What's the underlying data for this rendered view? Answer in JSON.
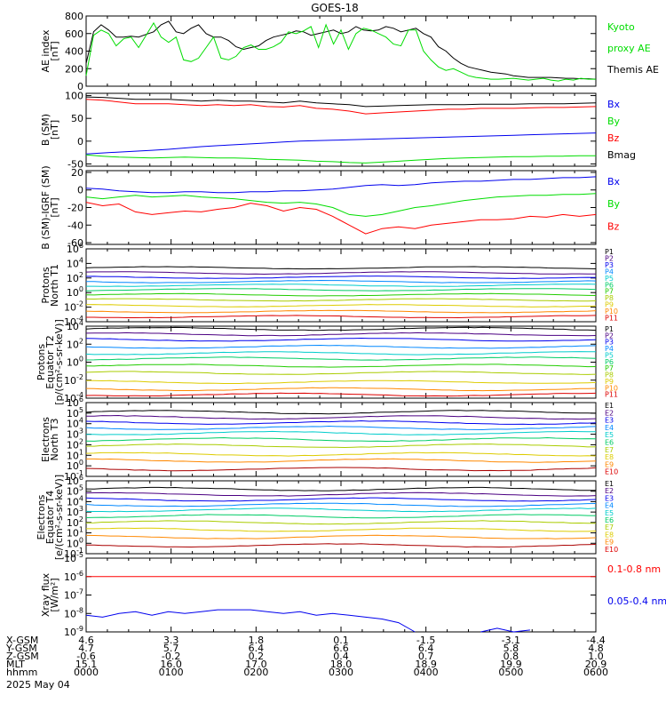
{
  "title": "GOES-18",
  "date_label": "2025 May 04",
  "chart_data": [
    {
      "type": "line",
      "id": "ae",
      "ylabel": [
        "AE index",
        "[nT]"
      ],
      "ylim": [
        0,
        800
      ],
      "yticks": [
        [
          0,
          "0"
        ],
        [
          200,
          "200"
        ],
        [
          400,
          "400"
        ],
        [
          600,
          "600"
        ],
        [
          800,
          "800"
        ]
      ],
      "series": [
        {
          "name": "Themis AE",
          "color": "#000000",
          "values": [
            260,
            620,
            700,
            640,
            560,
            560,
            570,
            560,
            590,
            620,
            700,
            740,
            620,
            600,
            660,
            700,
            600,
            560,
            560,
            520,
            450,
            420,
            440,
            460,
            520,
            560,
            580,
            600,
            630,
            620,
            580,
            600,
            620,
            640,
            600,
            620,
            680,
            640,
            630,
            640,
            680,
            660,
            620,
            640,
            660,
            600,
            560,
            450,
            400,
            320,
            260,
            220,
            200,
            180,
            160,
            150,
            140,
            120,
            110,
            100,
            100,
            100,
            100,
            95,
            90,
            90,
            85,
            85,
            80
          ]
        },
        {
          "name": "Kyoto proxy AE",
          "color": "#00dd00",
          "values": [
            120,
            580,
            640,
            600,
            460,
            540,
            560,
            440,
            580,
            720,
            560,
            500,
            560,
            300,
            280,
            320,
            440,
            560,
            320,
            300,
            340,
            440,
            470,
            420,
            420,
            450,
            500,
            620,
            600,
            630,
            680,
            440,
            700,
            480,
            640,
            420,
            600,
            660,
            640,
            600,
            560,
            480,
            460,
            640,
            640,
            400,
            300,
            220,
            180,
            200,
            160,
            120,
            100,
            90,
            80,
            80,
            85,
            90,
            80,
            70,
            80,
            90,
            70,
            60,
            80,
            70,
            90,
            80,
            80
          ]
        }
      ],
      "legend": [
        {
          "text": "Kyoto",
          "color": "#00dd00"
        },
        {
          "text": "proxy AE",
          "color": "#00dd00"
        },
        {
          "text": "Themis AE",
          "color": "#000000"
        }
      ]
    },
    {
      "type": "line",
      "id": "bsm",
      "ylabel": [
        "B (SM)",
        "[nT]"
      ],
      "ylim": [
        -55,
        105
      ],
      "yticks": [
        [
          -50,
          "-50"
        ],
        [
          0,
          "0"
        ],
        [
          50,
          "50"
        ],
        [
          100,
          "100"
        ]
      ],
      "series": [
        {
          "name": "Bx",
          "color": "#0000ee",
          "values": [
            -28,
            -26,
            -24,
            -22,
            -20,
            -18,
            -15,
            -12,
            -10,
            -8,
            -6,
            -4,
            -2,
            0,
            1,
            2,
            3,
            4,
            5,
            6,
            7,
            8,
            9,
            10,
            11,
            12,
            13,
            14,
            15,
            16,
            17,
            18
          ]
        },
        {
          "name": "By",
          "color": "#00dd00",
          "values": [
            -30,
            -33,
            -35,
            -36,
            -37,
            -36,
            -35,
            -36,
            -37,
            -37,
            -38,
            -40,
            -41,
            -42,
            -44,
            -45,
            -47,
            -48,
            -46,
            -44,
            -42,
            -40,
            -38,
            -37,
            -36,
            -35,
            -34,
            -34,
            -33,
            -33,
            -32,
            -32
          ]
        },
        {
          "name": "Bz",
          "color": "#ff0000",
          "values": [
            92,
            90,
            86,
            82,
            82,
            82,
            80,
            78,
            80,
            78,
            80,
            76,
            75,
            78,
            72,
            70,
            66,
            60,
            62,
            64,
            66,
            68,
            70,
            70,
            72,
            72,
            72,
            73,
            74,
            74,
            75,
            76
          ]
        },
        {
          "name": "Bmag",
          "color": "#000000",
          "values": [
            97,
            96,
            94,
            92,
            92,
            92,
            90,
            88,
            90,
            88,
            88,
            86,
            84,
            88,
            84,
            82,
            80,
            76,
            77,
            78,
            79,
            80,
            80,
            80,
            81,
            81,
            81,
            82,
            82,
            82,
            83,
            84
          ]
        }
      ],
      "legend": [
        {
          "text": "Bx",
          "color": "#0000ee"
        },
        {
          "text": "By",
          "color": "#00dd00"
        },
        {
          "text": "Bz",
          "color": "#ff0000"
        },
        {
          "text": "Bmag",
          "color": "#000000"
        }
      ]
    },
    {
      "type": "line",
      "id": "bigrf",
      "ylabel": [
        "B (SM)-IGRF (SM)",
        "[nT]"
      ],
      "ylim": [
        -62,
        22
      ],
      "yticks": [
        [
          -60,
          "-60"
        ],
        [
          -40,
          "-40"
        ],
        [
          -20,
          "-20"
        ],
        [
          0,
          "0"
        ],
        [
          20,
          "20"
        ]
      ],
      "series": [
        {
          "name": "Bx",
          "color": "#0000ee",
          "values": [
            2,
            1,
            -1,
            -2,
            -3,
            -3,
            -2,
            -2,
            -3,
            -3,
            -2,
            -2,
            -1,
            -1,
            0,
            1,
            3,
            5,
            6,
            5,
            6,
            8,
            9,
            10,
            10,
            11,
            12,
            12,
            13,
            14,
            14,
            15
          ]
        },
        {
          "name": "By",
          "color": "#00dd00",
          "values": [
            -8,
            -10,
            -8,
            -6,
            -8,
            -7,
            -6,
            -8,
            -9,
            -10,
            -12,
            -14,
            -15,
            -14,
            -16,
            -20,
            -28,
            -30,
            -28,
            -24,
            -20,
            -18,
            -15,
            -12,
            -10,
            -8,
            -7,
            -6,
            -6,
            -5,
            -5,
            -4
          ]
        },
        {
          "name": "Bz",
          "color": "#ff0000",
          "values": [
            -14,
            -18,
            -16,
            -25,
            -28,
            -26,
            -24,
            -25,
            -22,
            -20,
            -15,
            -18,
            -24,
            -20,
            -22,
            -30,
            -40,
            -50,
            -44,
            -42,
            -44,
            -40,
            -38,
            -36,
            -34,
            -34,
            -33,
            -30,
            -31,
            -28,
            -30,
            -28
          ]
        }
      ],
      "legend": [
        {
          "text": "Bx",
          "color": "#0000ee"
        },
        {
          "text": "By",
          "color": "#00dd00"
        },
        {
          "text": "Bz",
          "color": "#ff0000"
        }
      ]
    },
    {
      "type": "line",
      "id": "pt1",
      "log": true,
      "ylabel": [
        "Protons",
        "North T1"
      ],
      "ylim": [
        -4,
        6
      ],
      "yticks": [
        [
          -4,
          "10",
          "-4"
        ],
        [
          -2,
          "10",
          "-2"
        ],
        [
          0,
          "10",
          "0"
        ],
        [
          2,
          "10",
          "2"
        ],
        [
          4,
          "10",
          "4"
        ],
        [
          6,
          "10",
          "6"
        ]
      ],
      "channels": [
        "P1",
        "P2",
        "P3",
        "P4",
        "P5",
        "P6",
        "P7",
        "P8",
        "P9",
        "P10",
        "P11"
      ],
      "levels": [
        3.4,
        2.7,
        2.1,
        1.5,
        1.0,
        0.4,
        -0.3,
        -1.0,
        -1.8,
        -2.6,
        -3.3
      ],
      "colors": [
        "#000000",
        "#4b0082",
        "#0000ee",
        "#0088ff",
        "#00cccc",
        "#00cc66",
        "#22cc00",
        "#aacc00",
        "#ddcc00",
        "#ff8800",
        "#dd0000"
      ],
      "legend_colors": [
        "#000000",
        "#4b0082",
        "#0000ee",
        "#0088ff",
        "#00cccc",
        "#00cc66",
        "#22cc00",
        "#aacc00",
        "#ddcc00",
        "#ff8800",
        "#dd0000"
      ]
    },
    {
      "type": "line",
      "id": "pt2",
      "log": true,
      "ylabel": [
        "Protons",
        "Equator T2",
        "[p/(cm²-s-sr-keV)]"
      ],
      "ylim": [
        -4,
        4
      ],
      "yticks": [
        [
          -4,
          "10",
          "-4"
        ],
        [
          -2,
          "10",
          "-2"
        ],
        [
          0,
          "10",
          "0"
        ],
        [
          2,
          "10",
          "2"
        ],
        [
          4,
          "10",
          "4"
        ]
      ],
      "channels": [
        "P1",
        "P2",
        "P3",
        "P4",
        "P5",
        "P6",
        "P7",
        "P8",
        "P9",
        "P10",
        "P11"
      ],
      "levels": [
        3.7,
        3.1,
        2.5,
        1.7,
        1.0,
        0.4,
        -0.4,
        -1.2,
        -2.2,
        -3.0,
        -3.6
      ],
      "colors": [
        "#000000",
        "#4b0082",
        "#0000ee",
        "#0088ff",
        "#00cccc",
        "#00cc66",
        "#22cc00",
        "#aacc00",
        "#ddcc00",
        "#ff8800",
        "#dd0000"
      ],
      "legend_colors": [
        "#000000",
        "#4b0082",
        "#0000ee",
        "#0088ff",
        "#00cccc",
        "#00cc66",
        "#22cc00",
        "#aacc00",
        "#ddcc00",
        "#ff8800",
        "#dd0000"
      ]
    },
    {
      "type": "line",
      "id": "et3",
      "log": true,
      "ylabel": [
        "Electrons",
        "North T3"
      ],
      "ylim": [
        -1,
        6
      ],
      "yticks": [
        [
          -1,
          "10",
          "-1"
        ],
        [
          0,
          "10",
          "0"
        ],
        [
          1,
          "10",
          "1"
        ],
        [
          2,
          "10",
          "2"
        ],
        [
          3,
          "10",
          "3"
        ],
        [
          4,
          "10",
          "4"
        ],
        [
          5,
          "10",
          "5"
        ],
        [
          6,
          "10",
          "6"
        ]
      ],
      "channels": [
        "E1",
        "E2",
        "E3",
        "E4",
        "E5",
        "E6",
        "E7",
        "E8",
        "E9",
        "E10"
      ],
      "levels": [
        5.1,
        4.6,
        4.1,
        3.6,
        3.1,
        2.5,
        1.9,
        1.1,
        0.5,
        -0.3
      ],
      "colors": [
        "#000000",
        "#4b0082",
        "#0000ee",
        "#0088ff",
        "#00cccc",
        "#00cc66",
        "#aacc00",
        "#ddcc00",
        "#ff8800",
        "#aa0000"
      ],
      "legend_colors": [
        "#000000",
        "#4b0082",
        "#0000ee",
        "#0088ff",
        "#00cccc",
        "#00cc66",
        "#aacc00",
        "#ddcc00",
        "#ff8800",
        "#dd0000"
      ]
    },
    {
      "type": "line",
      "id": "et4",
      "log": true,
      "ylabel": [
        "Electrons",
        "Equator T4",
        "[e/(cm²-s-sr-keV)]"
      ],
      "ylim": [
        -1,
        6
      ],
      "yticks": [
        [
          -1,
          "10",
          "-1"
        ],
        [
          0,
          "10",
          "0"
        ],
        [
          1,
          "10",
          "1"
        ],
        [
          2,
          "10",
          "2"
        ],
        [
          3,
          "10",
          "3"
        ],
        [
          4,
          "10",
          "4"
        ],
        [
          5,
          "10",
          "5"
        ],
        [
          6,
          "10",
          "6"
        ]
      ],
      "channels": [
        "E1",
        "E2",
        "E3",
        "E4",
        "E5",
        "E6",
        "E7",
        "E8",
        "E9",
        "E10"
      ],
      "levels": [
        5.2,
        4.7,
        4.2,
        3.7,
        3.2,
        2.6,
        2.0,
        1.3,
        0.6,
        -0.2
      ],
      "colors": [
        "#000000",
        "#4b0082",
        "#0000ee",
        "#0088ff",
        "#00cccc",
        "#00cc66",
        "#aacc00",
        "#ddcc00",
        "#ff8800",
        "#aa0000"
      ],
      "legend_colors": [
        "#000000",
        "#4b0082",
        "#0000ee",
        "#0088ff",
        "#00cccc",
        "#00cc66",
        "#aacc00",
        "#ddcc00",
        "#ff8800",
        "#dd0000"
      ]
    },
    {
      "type": "line",
      "id": "xray",
      "log": true,
      "ylabel": [
        "Xray flux",
        "[W/m²]"
      ],
      "ylim": [
        -9,
        -5
      ],
      "yticks": [
        [
          -9,
          "10",
          "-9"
        ],
        [
          -8,
          "10",
          "-8"
        ],
        [
          -7,
          "10",
          "-7"
        ],
        [
          -6,
          "10",
          "-6"
        ],
        [
          -5,
          "10",
          "-5"
        ]
      ],
      "series": [
        {
          "name": "0.1-0.8 nm",
          "color": "#ff0000",
          "values": [
            -6.0,
            -6.0,
            -6.0,
            -6.0,
            -6.0,
            -6.0,
            -6.0,
            -6.0,
            -6.0,
            -6.0,
            -6.0,
            -6.0,
            -6.0,
            -6.0,
            -6.0,
            -6.0,
            -6.0,
            -6.0,
            -6.0,
            -6.0,
            -6.0,
            -6.0,
            -6.0,
            -6.0,
            -6.0,
            -6.0,
            -6.0,
            -6.0,
            -6.0,
            -6.0,
            -6.0,
            -6.0
          ]
        },
        {
          "name": "0.05-0.4 nm",
          "color": "#0000ee",
          "values": [
            -8.1,
            -8.2,
            -8.0,
            -7.9,
            -8.1,
            -7.9,
            -8.0,
            -7.9,
            -7.8,
            -7.8,
            -7.8,
            -7.9,
            -8.0,
            -7.9,
            -8.1,
            -8.0,
            -8.1,
            -8.2,
            -8.3,
            -8.5,
            -9.0,
            null,
            null,
            null,
            -9.0,
            -8.8,
            -9.0,
            -8.9,
            null,
            null,
            null,
            null
          ]
        }
      ],
      "legend": [
        {
          "text": "0.1-0.8 nm",
          "color": "#ff0000"
        },
        {
          "text": "0.05-0.4 nm",
          "color": "#0000ee"
        }
      ]
    }
  ],
  "time_axis": {
    "row_labels": [
      "X-GSM",
      "Y-GSM",
      "Z-GSM",
      "MLT",
      "hhmm"
    ],
    "columns": [
      [
        "4.6",
        "4.7",
        "-0.6",
        "15.1",
        "0000"
      ],
      [
        "3.3",
        "5.7",
        "-0.2",
        "16.0",
        "0100"
      ],
      [
        "1.8",
        "6.4",
        "0.2",
        "17.0",
        "0200"
      ],
      [
        "0.1",
        "6.6",
        "0.4",
        "18.0",
        "0300"
      ],
      [
        "-1.5",
        "6.4",
        "0.7",
        "18.9",
        "0400"
      ],
      [
        "-3.1",
        "5.8",
        "0.8",
        "19.9",
        "0500"
      ],
      [
        "-4.4",
        "4.8",
        "1.0",
        "20.9",
        "0600"
      ]
    ]
  }
}
